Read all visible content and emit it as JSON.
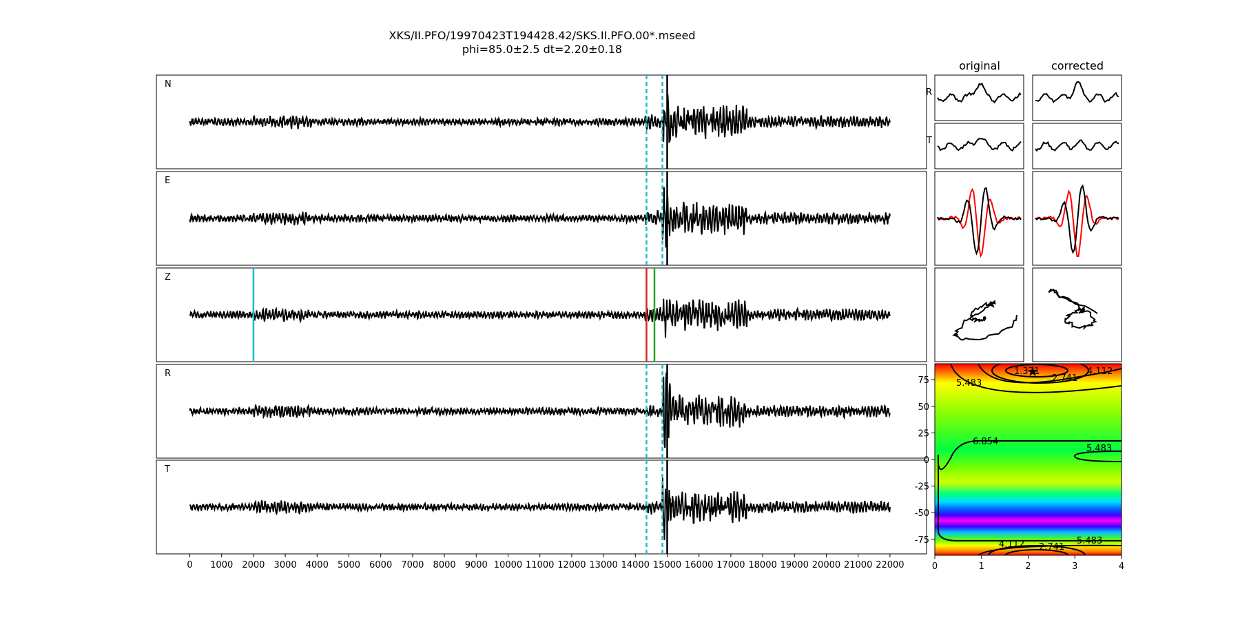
{
  "title": {
    "line1": "XKS/II.PFO/19970423T194428.42/SKS.II.PFO.00*.mseed",
    "line2": "phi=85.0±2.5 dt=2.20±0.18"
  },
  "chart_data": [
    {
      "type": "line",
      "panel": "seismograms",
      "traces": [
        "N",
        "E",
        "Z",
        "R",
        "T"
      ],
      "xlim": [
        -1050,
        23150
      ],
      "xticks": [
        0,
        1000,
        2000,
        3000,
        4000,
        5000,
        6000,
        7000,
        8000,
        9000,
        10000,
        11000,
        12000,
        13000,
        14000,
        15000,
        16000,
        17000,
        18000,
        19000,
        20000,
        21000,
        22000
      ],
      "window_markers": {
        "cyan_dashed": [
          14350,
          14850
        ],
        "black_line": 15000,
        "green_line": 14850
      },
      "z_markers": {
        "cyan": 2000,
        "red": 14350,
        "green": 14600
      },
      "colors": {
        "trace": "#000000",
        "cyan": "#17becf",
        "red": "#d62728",
        "green": "#2ca02c"
      }
    },
    {
      "type": "line",
      "panel": "particle-motion",
      "column_titles": [
        "original",
        "corrected"
      ],
      "row_labels": [
        "R",
        "T"
      ],
      "colors": {
        "radial": "#000000",
        "transverse": "#ff0000"
      }
    },
    {
      "type": "heatmap",
      "panel": "error-surface",
      "xlim": [
        0,
        4
      ],
      "ylim": [
        -90,
        90
      ],
      "xticks": [
        0,
        1,
        2,
        3,
        4
      ],
      "yticks": [
        75,
        50,
        25,
        0,
        -25,
        -50,
        -75
      ],
      "contour_levels": [
        "1.371",
        "2.741",
        "4.112",
        "5.483",
        "6.854"
      ],
      "best_fit": {
        "dt": 2.2,
        "phi": 85.0
      }
    }
  ]
}
